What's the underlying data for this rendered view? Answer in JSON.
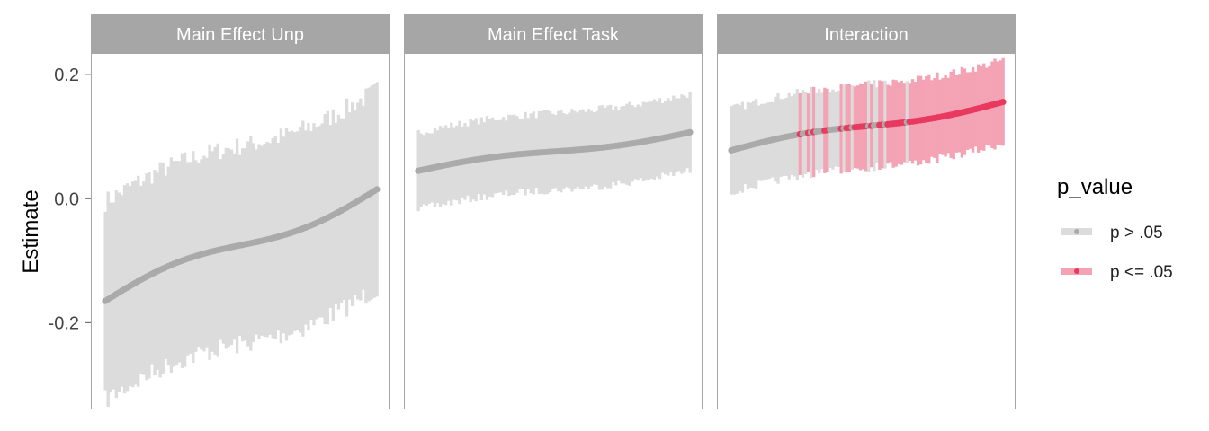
{
  "chart_data": {
    "type": "scatter",
    "ylabel": "Estimate",
    "ylim": [
      -0.34,
      0.235
    ],
    "y_ticks": [
      -0.2,
      0.0,
      0.2
    ],
    "y_tick_labels": [
      "-0.2",
      "0.0",
      "0.2"
    ],
    "grid": false,
    "facets": [
      {
        "label": "Main Effect Unp",
        "n": 100,
        "estimate_range": [
          -0.165,
          0.015
        ],
        "ci_half_width": 0.16,
        "significant_from_rank": null
      },
      {
        "label": "Main Effect Task",
        "n": 100,
        "estimate_range": [
          0.045,
          0.107
        ],
        "ci_half_width": 0.062,
        "significant_from_rank": null
      },
      {
        "label": "Interaction",
        "n": 100,
        "estimate_range": [
          0.078,
          0.156
        ],
        "ci_half_width": 0.067,
        "significant_from_rank": 25
      }
    ],
    "legend": {
      "title": "p_value",
      "position": "right",
      "items": [
        {
          "label": "p > .05",
          "color": "#AAAAAA",
          "band_color": "#DCDCDC"
        },
        {
          "label": "p <= .05",
          "color": "#E8395F",
          "band_color": "#F4A3B4"
        }
      ]
    }
  },
  "colors": {
    "strip_bg": "#A6A6A6",
    "panel_border": "#A6A6A6",
    "nonsig_point": "#AAAAAA",
    "nonsig_band": "#DCDCDC",
    "sig_point": "#E8395F",
    "sig_band": "#F4A3B4"
  }
}
